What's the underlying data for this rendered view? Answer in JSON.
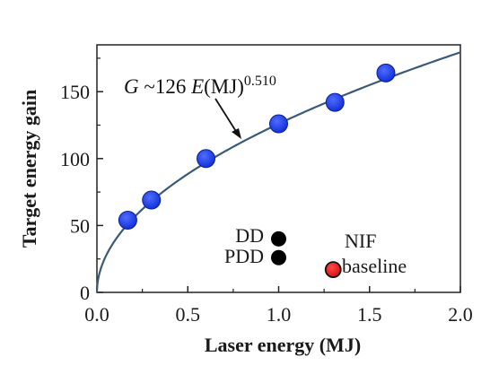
{
  "chart_data": {
    "type": "scatter",
    "xlabel": "Laser energy (MJ)",
    "ylabel": "Target energy gain",
    "xlim": [
      0,
      2.0
    ],
    "ylim": [
      0,
      185
    ],
    "x_ticks": [
      "0.0",
      "0.5",
      "1.0",
      "1.5",
      "2.0"
    ],
    "x_tick_values": [
      0,
      0.5,
      1.0,
      1.5,
      2.0
    ],
    "y_ticks": [
      "0",
      "50",
      "100",
      "150"
    ],
    "y_tick_values": [
      0,
      50,
      100,
      150
    ],
    "grid": false,
    "fit": {
      "formula_prefix": "G",
      "formula_mid": " ~126 ",
      "formula_var": "E",
      "formula_unit": "(MJ)",
      "formula_exp": "0.510",
      "coefficient": 126,
      "exponent": 0.51,
      "color": "#3a5a7a"
    },
    "series": [
      {
        "points": [
          {
            "x": 0.17,
            "y": 54
          },
          {
            "x": 0.3,
            "y": 69
          },
          {
            "x": 0.6,
            "y": 100
          },
          {
            "x": 1.0,
            "y": 126
          },
          {
            "x": 1.31,
            "y": 142
          },
          {
            "x": 1.59,
            "y": 164
          }
        ],
        "color": "#1f3fe0"
      },
      {
        "points": [
          {
            "x": 1.0,
            "y": 40
          }
        ],
        "color": "#000000",
        "label": "DD"
      },
      {
        "points": [
          {
            "x": 1.0,
            "y": 26
          }
        ],
        "color": "#000000",
        "label": "PDD"
      },
      {
        "points": [
          {
            "x": 1.3,
            "y": 17
          }
        ],
        "color": "#e02020",
        "label_line1": "NIF",
        "label_line2": "baseline"
      }
    ]
  }
}
